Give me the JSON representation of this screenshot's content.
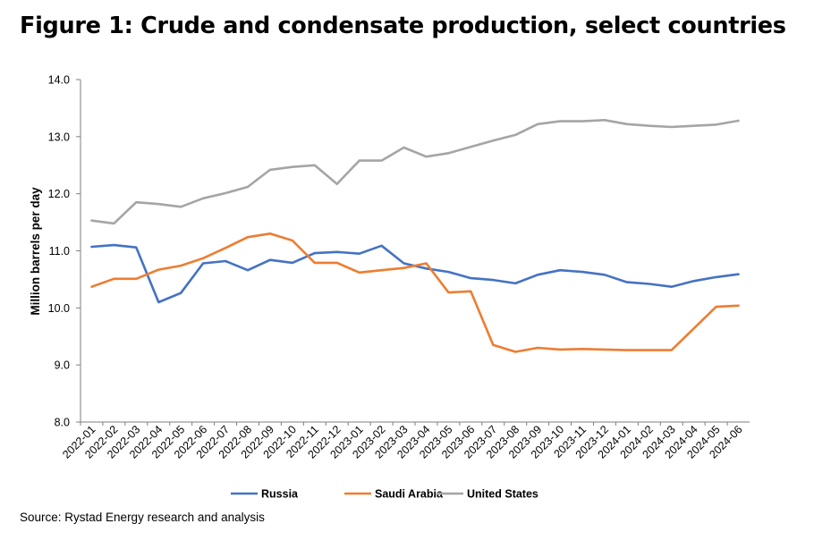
{
  "figure": {
    "title": "Figure 1: Crude and condensate production, select countries",
    "source": "Source: Rystad Energy research and analysis"
  },
  "chart_data": {
    "type": "line",
    "title": "Figure 1: Crude and condensate production, select countries",
    "xlabel": "",
    "ylabel": "Million barrels per day",
    "ylim": [
      8.0,
      14.0
    ],
    "yticks": [
      "8.0",
      "9.0",
      "10.0",
      "11.0",
      "12.0",
      "13.0",
      "14.0"
    ],
    "grid": false,
    "legend_position": "bottom",
    "x": [
      "2022-01",
      "2022-02",
      "2022-03",
      "2022-04",
      "2022-05",
      "2022-06",
      "2022-07",
      "2022-08",
      "2022-09",
      "2022-10",
      "2022-11",
      "2022-12",
      "2023-01",
      "2023-02",
      "2023-03",
      "2023-04",
      "2023-05",
      "2023-06",
      "2023-07",
      "2023-08",
      "2023-09",
      "2023-10",
      "2023-11",
      "2023-12",
      "2024-01",
      "2024-02",
      "2024-03",
      "2024-04",
      "2024-05",
      "2024-06"
    ],
    "series": [
      {
        "name": "Russia",
        "color": "#4472c4",
        "values": [
          11.07,
          11.1,
          11.06,
          10.1,
          10.26,
          10.78,
          10.82,
          10.66,
          10.84,
          10.79,
          10.96,
          10.98,
          10.95,
          11.09,
          10.78,
          10.69,
          10.63,
          10.52,
          10.49,
          10.43,
          10.58,
          10.66,
          10.63,
          10.58,
          10.45,
          10.42,
          10.37,
          10.47,
          10.54,
          10.59
        ]
      },
      {
        "name": "Saudi Arabia",
        "color": "#ed7d31",
        "values": [
          10.37,
          10.51,
          10.51,
          10.67,
          10.74,
          10.87,
          11.05,
          11.24,
          11.3,
          11.18,
          10.79,
          10.79,
          10.62,
          10.66,
          10.7,
          10.78,
          10.27,
          10.29,
          9.35,
          9.23,
          9.3,
          9.27,
          9.28,
          9.27,
          9.26,
          9.26,
          9.26,
          9.64,
          10.02,
          10.04
        ]
      },
      {
        "name": "United States",
        "color": "#a5a5a5",
        "values": [
          11.53,
          11.48,
          11.85,
          11.82,
          11.77,
          11.92,
          12.01,
          12.12,
          12.42,
          12.47,
          12.5,
          12.17,
          12.58,
          12.58,
          12.81,
          12.65,
          12.71,
          12.82,
          12.93,
          13.03,
          13.22,
          13.27,
          13.27,
          13.29,
          13.22,
          13.19,
          13.17,
          13.19,
          13.21,
          13.28
        ]
      }
    ]
  }
}
